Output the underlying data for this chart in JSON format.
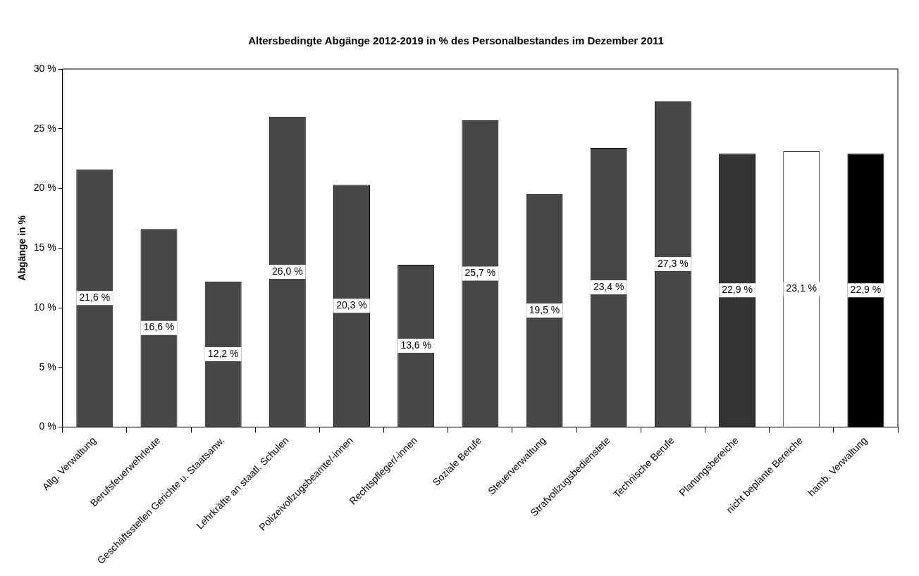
{
  "chart_data": {
    "type": "bar",
    "title": "Altersbedingte Abgänge 2012-2019 in % des Personalbestandes im Dezember 2011",
    "ylabel": "Abgänge in %",
    "categories": [
      "Allg. Verwaltung",
      "Berufsfeuerwehrleute",
      "Geschäftsstellen Gerichte u. Staatsanw.",
      "Lehrkräfte an staatl. Schulen",
      "Polizeivollzugsbeamte/-innen",
      "Rechtspfleger/-innen",
      "Soziale Berufe",
      "Steuerverwaltung",
      "Strafvollzugsbedienstete",
      "Technische Berufe",
      "Planungsbereiche",
      "nicht beplante Bereiche",
      "hamb. Verwaltung"
    ],
    "values": [
      21.6,
      16.6,
      12.2,
      26.0,
      20.3,
      13.6,
      25.7,
      19.5,
      23.4,
      27.3,
      22.9,
      23.1,
      22.9
    ],
    "value_labels": [
      "21,6 %",
      "16,6 %",
      "12,2 %",
      "26,0 %",
      "20,3 %",
      "13,6 %",
      "25,7 %",
      "19,5 %",
      "23,4 %",
      "27,3 %",
      "22,9 %",
      "23,1 %",
      "22,9 %"
    ],
    "colors": [
      "#474747",
      "#474747",
      "#474747",
      "#474747",
      "#474747",
      "#474747",
      "#474747",
      "#474747",
      "#474747",
      "#474747",
      "#333333",
      "#ffffff",
      "#000000"
    ],
    "ylim": [
      0,
      30
    ],
    "yticks": [
      {
        "value": 0,
        "label": "0 %"
      },
      {
        "value": 5,
        "label": "5 %"
      },
      {
        "value": 10,
        "label": "10 %"
      },
      {
        "value": 15,
        "label": "15 %"
      },
      {
        "value": 20,
        "label": "20 %"
      },
      {
        "value": 25,
        "label": "25 %"
      },
      {
        "value": 30,
        "label": "30 %"
      }
    ],
    "grid": false,
    "legend": false
  }
}
